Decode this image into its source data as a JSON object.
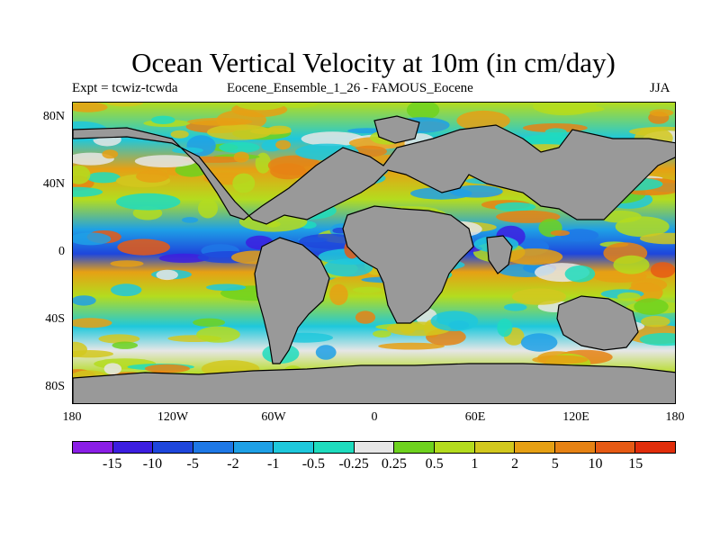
{
  "title": "Ocean Vertical Velocity at 10m (in cm/day)",
  "experiment_label": "Expt = tcwiz-tcwda",
  "ensemble_label": "Eocene_Ensemble_1_26 - FAMOUS_Eocene",
  "season": "JJA",
  "lat_labels": [
    "80N",
    "40N",
    "0",
    "40S",
    "80S"
  ],
  "lon_labels": [
    "180",
    "120W",
    "60W",
    "0",
    "60E",
    "120E",
    "180"
  ],
  "colorbar": {
    "colors": [
      "#8a1ee6",
      "#3c1ee0",
      "#1e46dc",
      "#1e78e6",
      "#1ea0e6",
      "#1ec8dc",
      "#1edcbe",
      "#e6e6e6",
      "#6ed21e",
      "#b4dc1e",
      "#d2c81e",
      "#e6a014",
      "#e68214",
      "#e65a14",
      "#e12d0a"
    ],
    "labels": [
      "-15",
      "-10",
      "-5",
      "-2",
      "-1",
      "-0.5",
      "-0.25",
      "0.25",
      "0.5",
      "1",
      "2",
      "5",
      "10",
      "15"
    ]
  },
  "map_colors": {
    "land": "#999999",
    "coast": "#000000"
  }
}
